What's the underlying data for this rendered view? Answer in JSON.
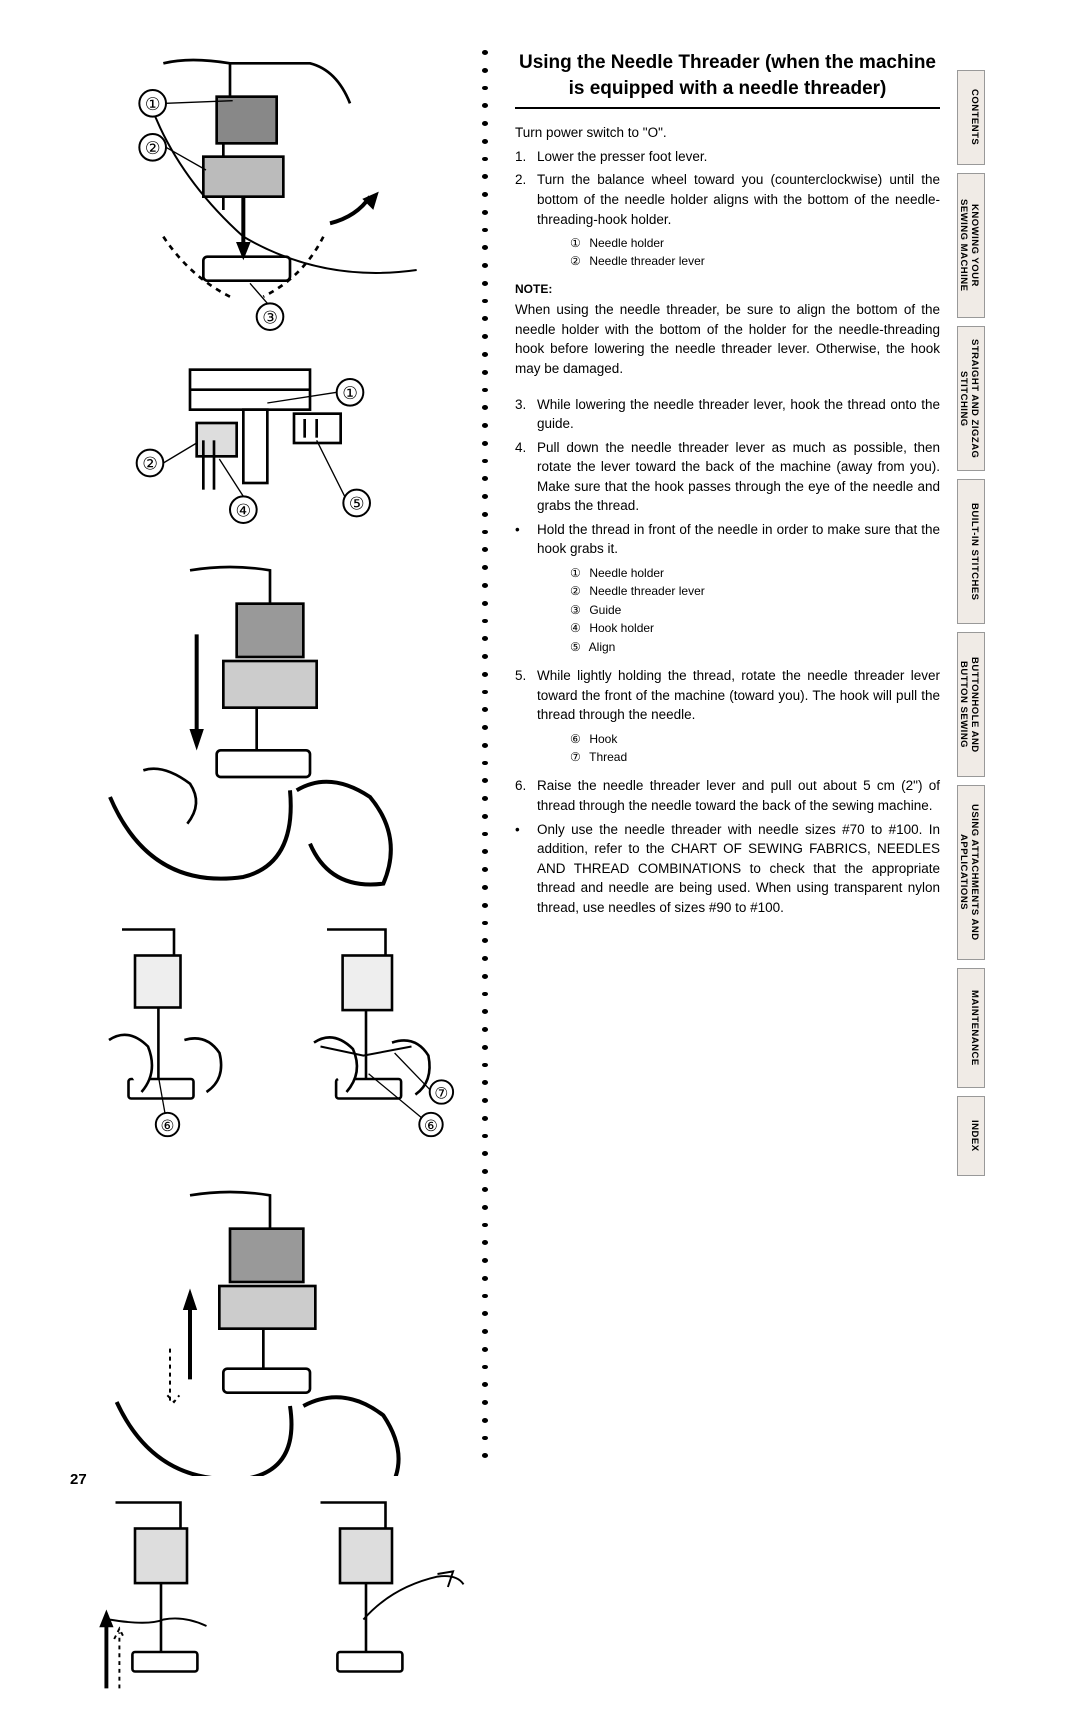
{
  "heading": "Using the Needle Threader (when the machine is equipped with a needle threader)",
  "intro": "Turn power switch to \"O\".",
  "steps": [
    {
      "n": "1.",
      "t": "Lower the presser foot lever."
    },
    {
      "n": "2.",
      "t": "Turn the balance wheel toward you (counterclockwise) until the bottom of the needle holder aligns with the bottom of the needle-threading-hook holder."
    }
  ],
  "sublist1": [
    {
      "c": "①",
      "t": "Needle holder"
    },
    {
      "c": "②",
      "t": "Needle threader lever"
    }
  ],
  "note_label": "NOTE:",
  "note_body": "When using the needle threader, be sure to align the bottom of the needle holder with the bottom of the holder for the needle-threading hook before lowering the needle threader lever. Otherwise, the hook may be damaged.",
  "steps2": [
    {
      "n": "3.",
      "t": "While lowering the needle threader lever, hook the thread onto the guide."
    },
    {
      "n": "4.",
      "t": "Pull down the needle threader lever as much as possible, then rotate the lever toward the back of the machine (away from you). Make sure that the hook passes through the eye of the needle and grabs the thread."
    }
  ],
  "bullet1": {
    "t": "Hold the thread in front of the needle in order to make sure that the hook grabs it."
  },
  "sublist2": [
    {
      "c": "①",
      "t": "Needle holder"
    },
    {
      "c": "②",
      "t": "Needle threader lever"
    },
    {
      "c": "③",
      "t": "Guide"
    },
    {
      "c": "④",
      "t": "Hook holder"
    },
    {
      "c": "⑤",
      "t": "Align"
    }
  ],
  "steps3": [
    {
      "n": "5.",
      "t": "While lightly holding the thread, rotate the needle threader lever toward the front of the machine (toward you). The hook will pull the thread through the needle."
    }
  ],
  "sublist3": [
    {
      "c": "⑥",
      "t": "Hook"
    },
    {
      "c": "⑦",
      "t": "Thread"
    }
  ],
  "steps4": [
    {
      "n": "6.",
      "t": "Raise the needle threader lever and pull out about 5 cm (2\") of thread through the needle toward the back of the sewing machine."
    }
  ],
  "bullet2": {
    "t": "Only use the needle threader with needle sizes #70 to #100. In addition, refer to the CHART OF SEWING FABRICS, NEEDLES AND THREAD COMBINATIONS to check that the appropriate thread and needle are being used. When using transparent nylon thread, use needles of sizes #90 to #100."
  },
  "tabs": [
    "CONTENTS",
    "KNOWING YOUR SEWING MACHINE",
    "STRAIGHT AND ZIGZAG STITCHING",
    "BUILT-IN STITCHES",
    "BUTTONHOLE AND BUTTON SEWING",
    "USING ATTACHMENTS AND APPLICATIONS",
    "MAINTENANCE",
    "INDEX"
  ],
  "page_number": "27",
  "callouts": {
    "c1": "①",
    "c2": "②",
    "c3": "③",
    "c4": "④",
    "c5": "⑤",
    "c6": "⑥",
    "c7": "⑦"
  }
}
